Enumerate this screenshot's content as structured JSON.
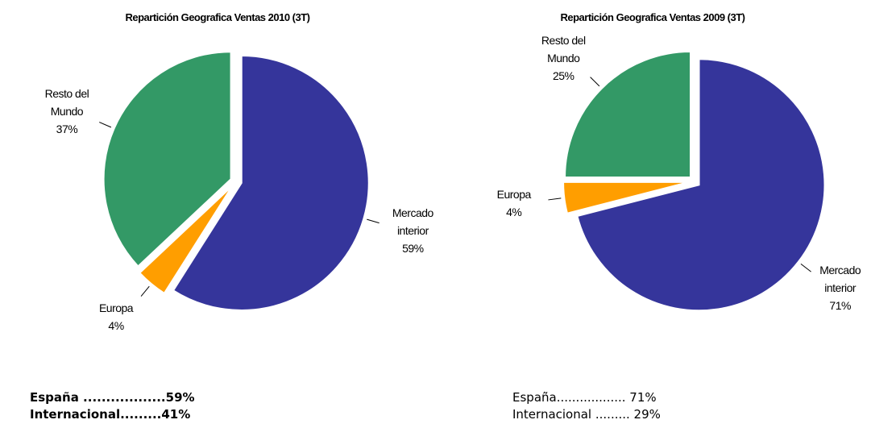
{
  "chart_data": [
    {
      "type": "pie",
      "title": "Repartición Geografica Ventas 2010 (3T)",
      "categories": [
        "Mercado interior",
        "Europa",
        "Resto del Mundo"
      ],
      "values": [
        59,
        4,
        37
      ],
      "value_labels": [
        "59%",
        "4%",
        "37%"
      ],
      "colors": [
        "#35359b",
        "#ff9e00",
        "#339966"
      ]
    },
    {
      "type": "pie",
      "title": "Repartición Geografica Ventas 2009 (3T)",
      "categories": [
        "Mercado interior",
        "Europa",
        "Resto del Mundo"
      ],
      "values": [
        71,
        4,
        25
      ],
      "value_labels": [
        "71%",
        "4%",
        "25%"
      ],
      "colors": [
        "#35359b",
        "#ff9e00",
        "#339966"
      ]
    }
  ],
  "summaries": [
    [
      "España ..................59%",
      "Internacional.........41%"
    ],
    [
      "España.................. 71%",
      "Internacional ......... 29%"
    ]
  ]
}
